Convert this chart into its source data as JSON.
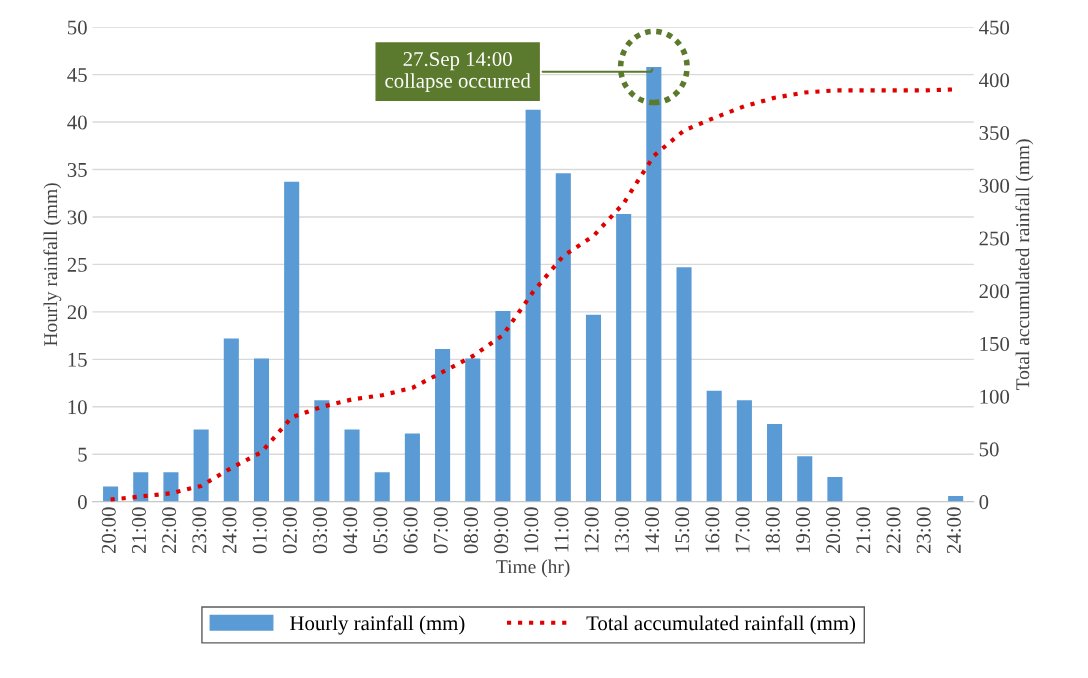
{
  "chart_data": {
    "type": "bar",
    "xlabel": "Time (hr)",
    "ylabel": "Hourly rainfall (mm)",
    "y2label": "Total accumulated rainfall (mm)",
    "categories": [
      "20:00",
      "21:00",
      "22:00",
      "23:00",
      "24:00",
      "01:00",
      "02:00",
      "03:00",
      "04:00",
      "05:00",
      "06:00",
      "07:00",
      "08:00",
      "09:00",
      "10:00",
      "11:00",
      "12:00",
      "13:00",
      "14:00",
      "15:00",
      "16:00",
      "17:00",
      "18:00",
      "19:00",
      "20:00",
      "21:00",
      "22:00",
      "23:00",
      "24:00"
    ],
    "series": [
      {
        "name": "Hourly rainfall (mm)",
        "color": "#5b9bd5",
        "values": [
          1.6,
          3.1,
          3.1,
          7.6,
          17.2,
          15.1,
          33.7,
          10.7,
          7.6,
          3.1,
          7.2,
          16.1,
          15.1,
          20.1,
          41.3,
          34.6,
          19.7,
          30.3,
          45.8,
          24.7,
          11.7,
          10.7,
          8.2,
          4.8,
          2.6,
          0,
          0,
          0,
          0.6
        ]
      },
      {
        "name": "Total accumulated rainfall (mm)",
        "type": "line",
        "axis": "y2",
        "color": "#e00000",
        "line_style": "dotted",
        "marker": "none",
        "values": [
          2,
          5,
          8,
          15,
          32,
          47,
          80,
          90,
          97,
          101,
          108,
          123,
          138,
          158,
          199,
          233,
          252,
          283,
          328,
          352,
          364,
          375,
          383,
          388,
          390,
          390,
          390,
          390,
          391
        ]
      }
    ],
    "ylim": [
      0,
      50
    ],
    "yticks": [
      0,
      5,
      10,
      15,
      20,
      25,
      30,
      35,
      40,
      45,
      50
    ],
    "y2lim": [
      0,
      450
    ],
    "y2ticks": [
      0,
      50,
      100,
      150,
      200,
      250,
      300,
      350,
      400,
      450
    ],
    "grid": "y",
    "legend": "bottom",
    "annotations": [
      {
        "text": "27.Sep 14:00\ncollapse occurred",
        "x": "14:00",
        "y": 45.8
      }
    ]
  }
}
